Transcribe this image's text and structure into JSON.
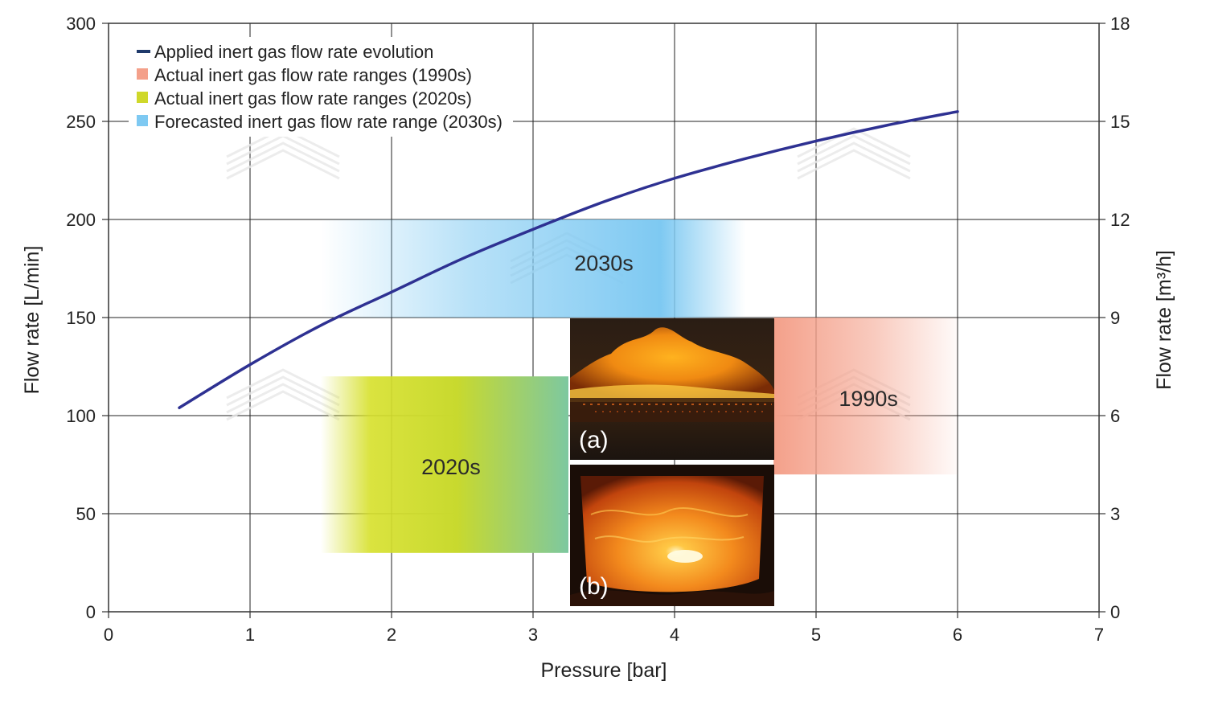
{
  "chart_data": {
    "type": "line",
    "xlabel": "Pressure [bar]",
    "ylabel": "Flow rate [L/min]",
    "y2label": "Flow rate [m³/h]",
    "xlim": [
      0,
      7
    ],
    "ylim": [
      0,
      300
    ],
    "y2lim": [
      0,
      18
    ],
    "xticks": [
      "0",
      "1",
      "2",
      "3",
      "4",
      "5",
      "6",
      "7"
    ],
    "yticks": [
      "0",
      "50",
      "100",
      "150",
      "200",
      "250",
      "300"
    ],
    "y2ticks": [
      "0",
      "3",
      "6",
      "9",
      "12",
      "15",
      "18"
    ],
    "grid": true,
    "legend_position": "top-left",
    "legend": [
      {
        "label": "Applied inert gas flow rate evolution",
        "color": "#1f3a6b",
        "marker": "line"
      },
      {
        "label": "Actual inert gas flow rate ranges (1990s)",
        "color": "#f4a08a",
        "marker": "square"
      },
      {
        "label": "Actual inert gas flow rate ranges (2020s)",
        "color": "#cfd82a",
        "marker": "square"
      },
      {
        "label": "Forecasted inert gas flow rate range (2030s)",
        "color": "#7ec9f2",
        "marker": "square"
      }
    ],
    "series": [
      {
        "name": "Applied inert gas flow rate evolution",
        "color": "#2e3192",
        "x": [
          0.5,
          1,
          1.5,
          2,
          2.5,
          3,
          3.5,
          4,
          4.5,
          5,
          5.5,
          6
        ],
        "y": [
          104,
          126,
          146,
          163,
          180,
          195,
          209,
          221,
          231,
          240,
          248,
          255
        ]
      }
    ],
    "ranges": [
      {
        "name": "2030s",
        "label": "2030s",
        "x": [
          1.5,
          4.5
        ],
        "y": [
          150,
          200
        ],
        "color": "#7ec9f2"
      },
      {
        "name": "2020s",
        "label": "2020s",
        "x": [
          1.5,
          3.25
        ],
        "y": [
          30,
          120
        ],
        "color": "#cfd82a"
      },
      {
        "name": "1990s",
        "label": "1990s",
        "x": [
          4.7,
          6.0
        ],
        "y": [
          70,
          150
        ],
        "color": "#f4a08a"
      }
    ],
    "insets": [
      {
        "label": "(a)"
      },
      {
        "label": "(b)"
      }
    ]
  }
}
